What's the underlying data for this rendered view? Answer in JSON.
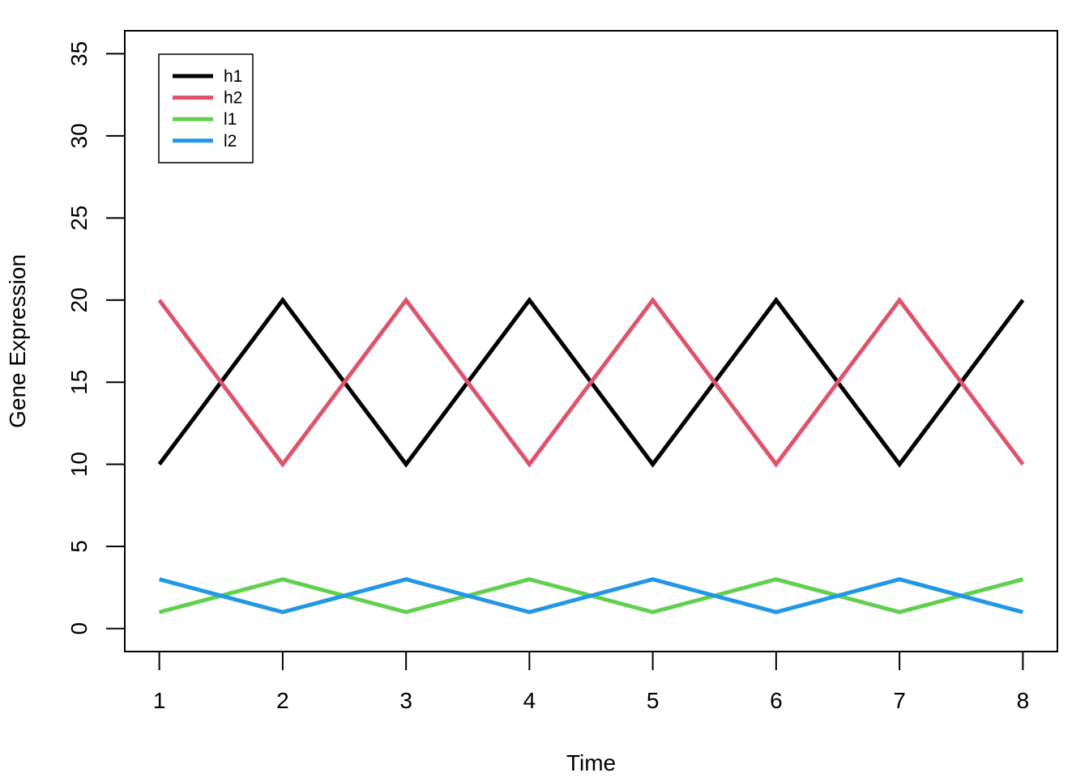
{
  "chart_data": {
    "type": "line",
    "title": "",
    "xlabel": "Time",
    "ylabel": "Gene Expression",
    "x": [
      1,
      2,
      3,
      4,
      5,
      6,
      7,
      8
    ],
    "xlim": [
      0.72,
      8.28
    ],
    "ylim": [
      -1.4,
      36.4
    ],
    "x_ticks": [
      1,
      2,
      3,
      4,
      5,
      6,
      7,
      8
    ],
    "y_ticks": [
      0,
      5,
      10,
      15,
      20,
      25,
      30,
      35
    ],
    "grid": false,
    "legend_position": "top-left",
    "series": [
      {
        "name": "h1",
        "color": "#000000",
        "values": [
          10,
          20,
          10,
          20,
          10,
          20,
          10,
          20
        ]
      },
      {
        "name": "h2",
        "color": "#DF536B",
        "values": [
          20,
          10,
          20,
          10,
          20,
          10,
          20,
          10
        ]
      },
      {
        "name": "l1",
        "color": "#61D04F",
        "values": [
          1,
          3,
          1,
          3,
          1,
          3,
          1,
          3
        ]
      },
      {
        "name": "l2",
        "color": "#2297E6",
        "values": [
          3,
          1,
          3,
          1,
          3,
          1,
          3,
          1
        ]
      }
    ]
  }
}
